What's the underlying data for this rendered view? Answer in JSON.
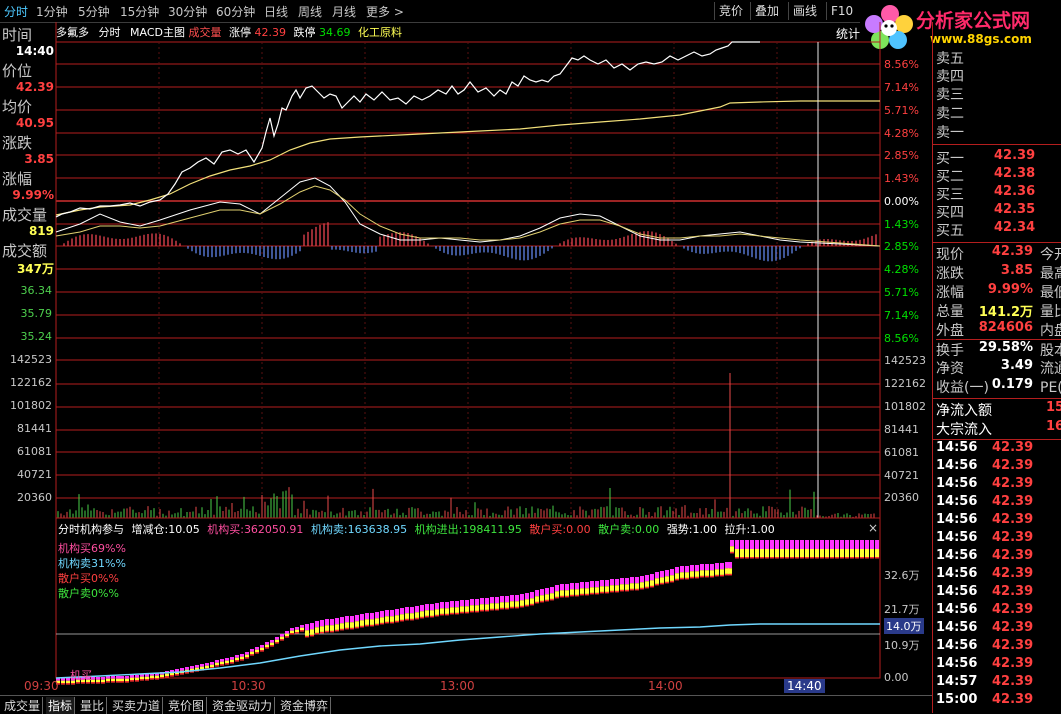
{
  "topbar": {
    "tabs": [
      "分时",
      "1分钟",
      "5分钟",
      "15分钟",
      "30分钟",
      "60分钟",
      "日线",
      "周线",
      "月线",
      "更多 >"
    ],
    "right_buttons": [
      "竞价",
      "叠加",
      "画线",
      "F10"
    ]
  },
  "logo": {
    "text": "分析家公式网",
    "url": "www.88gs.com"
  },
  "infobar": {
    "stock_name": "多氟多",
    "mode": "分时",
    "indicator": "MACD主图",
    "vol_label": "成交量",
    "limit_up_label": "涨停",
    "limit_up": "42.39",
    "limit_down_label": "跌停",
    "limit_down": "34.69",
    "sector": "化工原料",
    "stats": "统计"
  },
  "left": {
    "time_label": "时间",
    "time_value": "14:40",
    "price_label": "价位",
    "price_value": "42.39",
    "avg_label": "均价",
    "avg_value": "40.95",
    "change_label": "涨跌",
    "change_value": "3.85",
    "pct_label": "涨幅",
    "pct_value": "9.99%",
    "vol_label": "成交量",
    "vol_value": "819",
    "amount_label": "成交额",
    "amount_value": "347万",
    "price_ticks": [
      "36.34",
      "35.79",
      "35.24"
    ],
    "vol_ticks": [
      "142523",
      "122162",
      "101802",
      "81441",
      "61081",
      "40721",
      "20360"
    ]
  },
  "right_axis": {
    "pct_ticks": [
      "8.56%",
      "7.14%",
      "5.71%",
      "4.28%",
      "2.85%",
      "1.43%",
      "0.00%",
      "1.43%",
      "2.85%",
      "4.28%",
      "5.71%",
      "7.14%",
      "8.56%"
    ],
    "vol_ticks": [
      "142523",
      "122162",
      "101802",
      "81441",
      "61081",
      "40721",
      "20360"
    ],
    "lower_ticks": [
      "32.6万",
      "21.7万",
      "14.0万",
      "10.9万",
      "0.00"
    ]
  },
  "lower_panel": {
    "title": "分时机构参与",
    "items": [
      {
        "label": "增减仓:",
        "value": "10.05"
      },
      {
        "label": "机构买:",
        "value": "362050.91"
      },
      {
        "label": "机构卖:",
        "value": "163638.95"
      },
      {
        "label": "机构进出:",
        "value": "198411.95"
      },
      {
        "label": "散户买:",
        "value": "0.00"
      },
      {
        "label": "散户卖:",
        "value": "0.00"
      },
      {
        "label": "强势:",
        "value": "1.00"
      },
      {
        "label": "拉升:",
        "value": "1.00"
      }
    ],
    "legend": [
      "机构买69%%",
      "机构卖31%%",
      "散户买0%%",
      "散户卖0%%"
    ],
    "bottom_tag": "机买"
  },
  "time_axis": [
    "09:30",
    "10:30",
    "13:00",
    "14:00",
    "14:40"
  ],
  "bottom_tabs": [
    "成交量",
    "指标",
    "量比",
    "买卖力道",
    "竞价图",
    "资金驱动力",
    "资金博弈"
  ],
  "order_book": {
    "sells": [
      "卖五",
      "卖四",
      "卖三",
      "卖二",
      "卖一"
    ],
    "buys": [
      {
        "label": "买一",
        "price": "42.39"
      },
      {
        "label": "买二",
        "price": "42.38"
      },
      {
        "label": "买三",
        "price": "42.36"
      },
      {
        "label": "买四",
        "price": "42.35"
      },
      {
        "label": "买五",
        "price": "42.34"
      }
    ]
  },
  "quote": [
    {
      "label": "现价",
      "value": "42.39",
      "extra": "今开"
    },
    {
      "label": "涨跌",
      "value": "3.85",
      "extra": "最高"
    },
    {
      "label": "涨幅",
      "value": "9.99%",
      "extra": "最低"
    },
    {
      "label": "总量",
      "value": "141.2万",
      "extra": "量比"
    },
    {
      "label": "外盘",
      "value": "824606",
      "extra": "内盘"
    },
    {
      "label": "换手",
      "value": "29.58%",
      "extra": "股本"
    },
    {
      "label": "净资",
      "value": "3.49",
      "extra": "流通"
    },
    {
      "label": "收益(一)",
      "value": "0.179",
      "extra": "PE(动"
    }
  ],
  "flows": [
    {
      "label": "净流入额",
      "value": "15"
    },
    {
      "label": "大宗流入",
      "value": "16"
    }
  ],
  "ticks": [
    {
      "t": "14:56",
      "p": "42.39"
    },
    {
      "t": "14:56",
      "p": "42.39"
    },
    {
      "t": "14:56",
      "p": "42.39"
    },
    {
      "t": "14:56",
      "p": "42.39"
    },
    {
      "t": "14:56",
      "p": "42.39"
    },
    {
      "t": "14:56",
      "p": "42.39"
    },
    {
      "t": "14:56",
      "p": "42.39"
    },
    {
      "t": "14:56",
      "p": "42.39"
    },
    {
      "t": "14:56",
      "p": "42.39"
    },
    {
      "t": "14:56",
      "p": "42.39"
    },
    {
      "t": "14:56",
      "p": "42.39"
    },
    {
      "t": "14:56",
      "p": "42.39"
    },
    {
      "t": "14:56",
      "p": "42.39"
    },
    {
      "t": "14:57",
      "p": "42.39"
    },
    {
      "t": "15:00",
      "p": "42.39"
    }
  ]
}
